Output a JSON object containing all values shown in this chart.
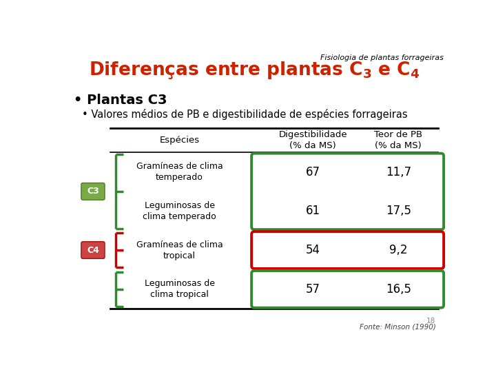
{
  "title_italic": "Fisiologia de plantas forrageiras",
  "title_main_color": "#cc2200",
  "bullet1": "• Plantas C3",
  "bullet2": "• Valores médios de PB e digestibilidade de espécies forrageiras",
  "col_header_especies": "Espécies",
  "col_header_dig": "Digestibilidade\n(% da MS)",
  "col_header_pb": "Teor de PB\n(% da MS)",
  "rows": [
    {
      "label": "Gramíneas de clima\ntemperado",
      "dig": "67",
      "pb": "11,7",
      "group": "C3a"
    },
    {
      "label": "Leguminosas de\nclima temperado",
      "dig": "61",
      "pb": "17,5",
      "group": "C3b"
    },
    {
      "label": "Gramíneas de clima\ntropical",
      "dig": "54",
      "pb": "9,2",
      "group": "C4"
    },
    {
      "label": "Leguminosas de\nclima tropical",
      "dig": "57",
      "pb": "16,5",
      "group": "leg"
    }
  ],
  "c3_box_color": "#2e8b2e",
  "c4_box_color": "#cc0000",
  "leg_box_color": "#2e8b2e",
  "c3_label_bg": "#7aaa44",
  "c4_label_bg": "#cc4444",
  "c3_bracket_color": "#2e8b2e",
  "c4_bracket_color": "#cc0000",
  "leg_bracket_color": "#2e8b2e",
  "bg_color": "#ffffff",
  "footnote_num": "18",
  "footnote_src": "Fonte: Minson (1990)"
}
